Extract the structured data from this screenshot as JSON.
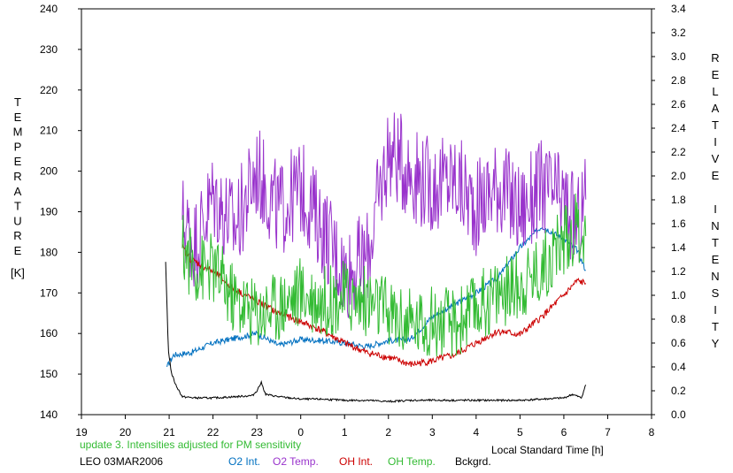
{
  "chart_data": {
    "type": "line",
    "left_axis_label": "TEMPERATURE",
    "left_axis_unit": "[K]",
    "right_axis_label": "RELATIVE INTENSITY",
    "xlabel": "Local Standard Time [h]",
    "annotation": "update 3. Intensities adjusted for PM sensitivity",
    "station_label": "LEO 03MAR2006",
    "x_ticks": [
      "19",
      "20",
      "21",
      "22",
      "23",
      "0",
      "1",
      "2",
      "3",
      "4",
      "5",
      "6",
      "7",
      "8"
    ],
    "xlim": [
      19,
      32
    ],
    "ylim_left": [
      140,
      240
    ],
    "left_ticks": [
      "140",
      "150",
      "160",
      "170",
      "180",
      "190",
      "200",
      "210",
      "220",
      "230",
      "240"
    ],
    "ylim_right": [
      0.0,
      3.4
    ],
    "right_ticks": [
      "0.0",
      "0.2",
      "0.4",
      "0.6",
      "0.8",
      "1.0",
      "1.2",
      "1.4",
      "1.6",
      "1.8",
      "2.0",
      "2.2",
      "2.4",
      "2.6",
      "2.8",
      "3.0",
      "3.2",
      "3.4"
    ],
    "grid": false,
    "legend_position": "bottom",
    "series": [
      {
        "name": "O2 Int.",
        "axis": "right",
        "color": "#0070c0",
        "x": [
          20.95,
          21.1,
          21.5,
          22.0,
          22.5,
          23.0,
          23.5,
          24.0,
          24.5,
          25.0,
          25.5,
          26.0,
          26.5,
          27.0,
          27.5,
          28.0,
          28.5,
          29.0,
          29.5,
          30.0,
          30.3,
          30.5
        ],
        "y": [
          0.4,
          0.5,
          0.52,
          0.6,
          0.64,
          0.68,
          0.58,
          0.63,
          0.62,
          0.6,
          0.57,
          0.62,
          0.63,
          0.82,
          0.92,
          1.02,
          1.15,
          1.4,
          1.58,
          1.47,
          1.38,
          1.21
        ]
      },
      {
        "name": "O2 Temp.",
        "axis": "left",
        "color": "#9933cc",
        "x": [
          21.3,
          21.6,
          22.0,
          22.5,
          23.0,
          23.5,
          24.0,
          24.5,
          25.0,
          25.5,
          26.0,
          26.5,
          27.0,
          27.5,
          28.0,
          28.5,
          29.0,
          29.5,
          30.0,
          30.3,
          30.5
        ],
        "y": [
          188,
          182,
          194,
          186,
          200,
          190,
          196,
          186,
          175,
          178,
          205,
          200,
          196,
          198,
          191,
          197,
          190,
          196,
          192,
          186,
          193
        ]
      },
      {
        "name": "OH Int.",
        "axis": "right",
        "color": "#cc0000",
        "x": [
          21.3,
          21.5,
          22.0,
          22.5,
          23.0,
          23.5,
          24.0,
          24.5,
          25.0,
          25.5,
          26.0,
          26.5,
          27.0,
          27.5,
          28.0,
          28.5,
          29.0,
          29.5,
          30.0,
          30.3,
          30.5
        ],
        "y": [
          1.4,
          1.3,
          1.2,
          1.05,
          0.95,
          0.85,
          0.78,
          0.7,
          0.6,
          0.52,
          0.48,
          0.42,
          0.45,
          0.5,
          0.6,
          0.7,
          0.67,
          0.82,
          1.0,
          1.12,
          1.1
        ]
      },
      {
        "name": "OH Temp.",
        "axis": "left",
        "color": "#33bb33",
        "x": [
          21.3,
          21.6,
          22.0,
          22.5,
          23.0,
          23.5,
          24.0,
          24.5,
          25.0,
          25.5,
          26.0,
          26.5,
          27.0,
          27.5,
          28.0,
          28.5,
          29.0,
          29.5,
          30.0,
          30.3,
          30.5
        ],
        "y": [
          181,
          176,
          176,
          168,
          165,
          167,
          170,
          168,
          169,
          168,
          165,
          162,
          163,
          162,
          166,
          170,
          172,
          176,
          183,
          186,
          184
        ]
      },
      {
        "name": "Bckgrd.",
        "axis": "right",
        "color": "#000000",
        "x": [
          20.92,
          20.98,
          21.05,
          21.15,
          21.3,
          21.6,
          22.0,
          22.5,
          22.9,
          23.0,
          23.1,
          23.2,
          23.5,
          24.0,
          24.5,
          25.0,
          25.5,
          26.0,
          26.5,
          27.0,
          27.5,
          28.0,
          28.5,
          29.0,
          29.5,
          30.0,
          30.2,
          30.4,
          30.5
        ],
        "y": [
          1.28,
          0.55,
          0.35,
          0.25,
          0.15,
          0.14,
          0.14,
          0.15,
          0.16,
          0.2,
          0.27,
          0.17,
          0.15,
          0.13,
          0.13,
          0.12,
          0.12,
          0.11,
          0.12,
          0.12,
          0.12,
          0.12,
          0.12,
          0.12,
          0.13,
          0.14,
          0.17,
          0.14,
          0.25
        ]
      }
    ]
  }
}
